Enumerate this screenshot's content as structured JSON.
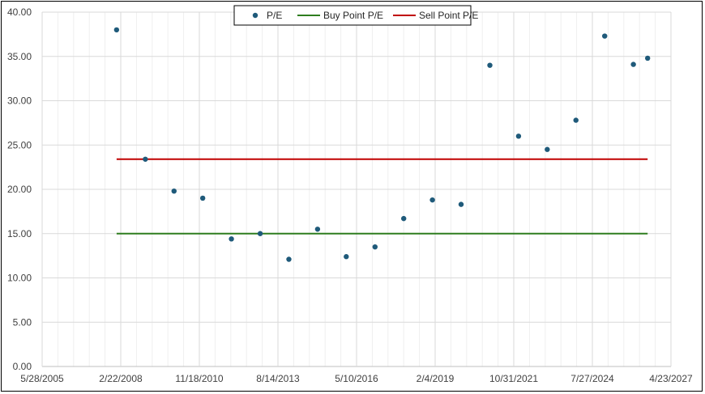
{
  "chart_data": {
    "type": "scatter",
    "title": "",
    "xlabel": "",
    "ylabel": "",
    "x_range": [
      "5/28/2005",
      "4/23/2027"
    ],
    "x_tick_labels": [
      "5/28/2005",
      "2/22/2008",
      "11/18/2010",
      "8/14/2013",
      "5/10/2016",
      "2/4/2019",
      "10/31/2021",
      "7/27/2024",
      "4/23/2027"
    ],
    "ylim": [
      0,
      40
    ],
    "y_tick_labels": [
      "0.00",
      "5.00",
      "10.00",
      "15.00",
      "20.00",
      "25.00",
      "30.00",
      "35.00",
      "40.00"
    ],
    "grid": true,
    "legend_position": "top-center",
    "series": [
      {
        "name": "P/E",
        "kind": "markers",
        "color": "#1f5a7a",
        "points": [
          {
            "x": "2007-12-31",
            "y": 38.0
          },
          {
            "x": "2008-12-31",
            "y": 23.4
          },
          {
            "x": "2009-12-31",
            "y": 19.8
          },
          {
            "x": "2010-12-31",
            "y": 19.0
          },
          {
            "x": "2011-12-31",
            "y": 14.4
          },
          {
            "x": "2012-12-31",
            "y": 15.0
          },
          {
            "x": "2013-12-31",
            "y": 12.1
          },
          {
            "x": "2014-12-31",
            "y": 15.5
          },
          {
            "x": "2015-12-31",
            "y": 12.4
          },
          {
            "x": "2016-12-31",
            "y": 13.5
          },
          {
            "x": "2017-12-31",
            "y": 16.7
          },
          {
            "x": "2018-12-31",
            "y": 18.8
          },
          {
            "x": "2019-12-31",
            "y": 18.3
          },
          {
            "x": "2020-12-31",
            "y": 34.0
          },
          {
            "x": "2021-12-31",
            "y": 26.0
          },
          {
            "x": "2022-12-31",
            "y": 24.5
          },
          {
            "x": "2023-12-31",
            "y": 27.8
          },
          {
            "x": "2024-12-31",
            "y": 37.3
          },
          {
            "x": "2025-12-31",
            "y": 34.1
          },
          {
            "x": "2026-06-30",
            "y": 34.8
          }
        ]
      },
      {
        "name": "Buy Point P/E",
        "kind": "line",
        "color": "#2e7d1f",
        "points": [
          {
            "x": "2007-12-31",
            "y": 15.0
          },
          {
            "x": "2026-06-30",
            "y": 15.0
          }
        ]
      },
      {
        "name": "Sell Point P/E",
        "kind": "line",
        "color": "#c00000",
        "points": [
          {
            "x": "2007-12-31",
            "y": 23.4
          },
          {
            "x": "2026-06-30",
            "y": 23.4
          }
        ]
      }
    ]
  }
}
